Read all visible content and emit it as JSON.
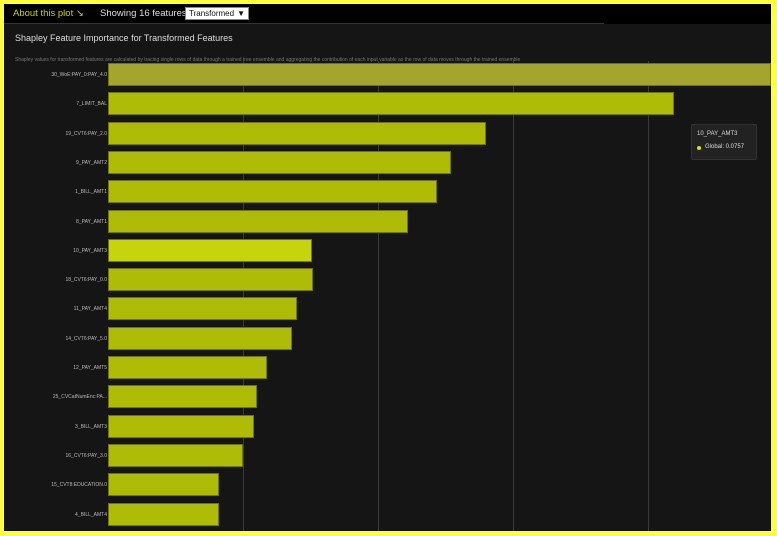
{
  "header": {
    "about_label": "About this plot ↘",
    "showing_label": "Showing 16 features:",
    "feature_type_select": {
      "selected": "Transformed",
      "arrow": "▼"
    }
  },
  "panel": {
    "title": "Shapley Feature Importance for Transformed Features",
    "subtitle": "Shapley values for transformed features are calculated by tracing single rows of data through a trained tree ensemble and aggregating the contribution of each input variable as the row of data moves through the trained ensemble"
  },
  "tooltip": {
    "feature": "10_PAY_AMT3",
    "series": "Global",
    "value_text": "Global: 0.0757",
    "dot_color": "#dde000"
  },
  "colors": {
    "bar": "#aebc08",
    "bar_first": "#a3a52e",
    "bar_highlight": "#c6d40c",
    "background": "#151515",
    "accent": "#c8d400"
  },
  "chart_data": {
    "type": "bar",
    "orientation": "horizontal",
    "title": "Shapley Feature Importance for Transformed Features",
    "xlabel": "",
    "ylabel": "",
    "xlim": [
      0,
      0.245
    ],
    "grid": {
      "vertical": true,
      "step": 0.05,
      "lines": [
        0.05,
        0.1,
        0.15,
        0.2
      ]
    },
    "legend": {
      "position": "tooltip-right",
      "entries": [
        "Global"
      ]
    },
    "highlighted": "10_PAY_AMT3",
    "categories": [
      "30_WoE:PAY_0:PAY_4.0",
      "7_LIMIT_BAL",
      "19_CVT6:PAY_2.0",
      "9_PAY_AMT2",
      "1_BILL_AMT1",
      "8_PAY_AMT1",
      "10_PAY_AMT3",
      "18_CVT6:PAY_0.0",
      "11_PAY_AMT4",
      "14_CVT6:PAY_5.0",
      "12_PAY_AMT5",
      "25_CVCatNumEnc:PA...",
      "3_BILL_AMT3",
      "16_CVT6:PAY_3.0",
      "15_CVT8:EDUCATION.0",
      "4_BILL_AMT4"
    ],
    "values": [
      0.245,
      0.2096,
      0.14,
      0.127,
      0.122,
      0.111,
      0.0757,
      0.076,
      0.07,
      0.068,
      0.059,
      0.055,
      0.054,
      0.05,
      0.041,
      0.041
    ]
  }
}
